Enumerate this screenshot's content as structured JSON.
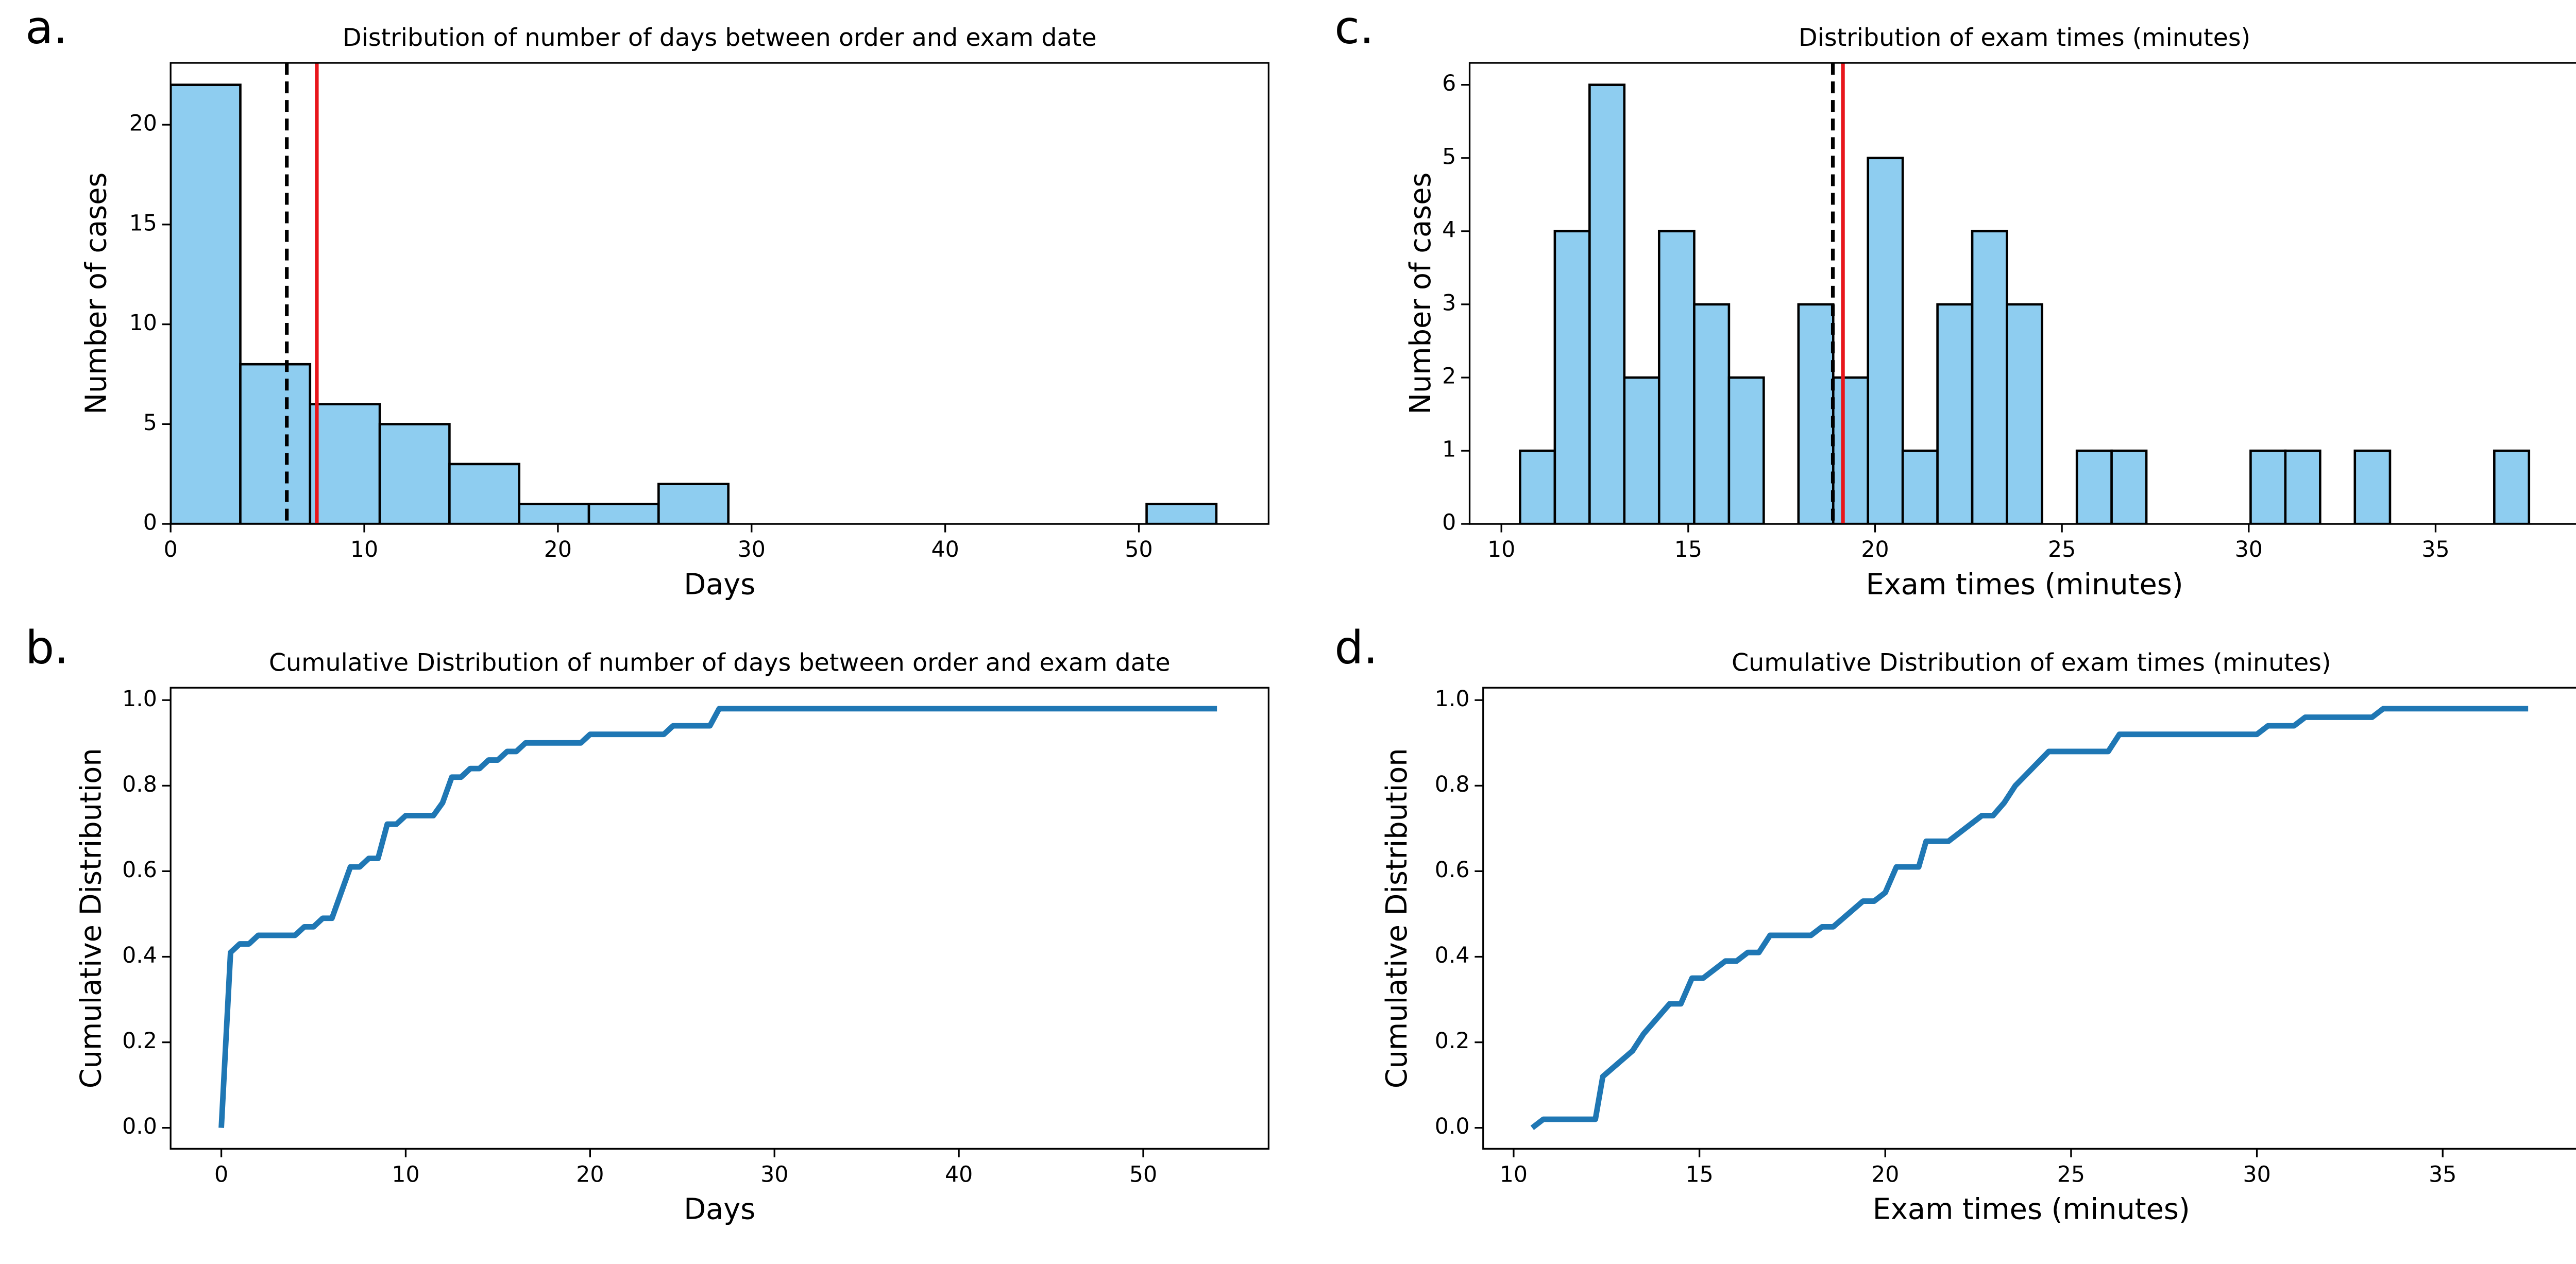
{
  "chart_data": [
    {
      "type": "histogram",
      "panel_label": "a.",
      "title": "Distribution of number of days between order and exam date",
      "x_label": "Days",
      "y_label": "Number of cases",
      "color": "#8ecdf0",
      "edge_color": "#000000",
      "bins": [
        0,
        3.6,
        7.2,
        10.8,
        14.4,
        18,
        21.6,
        25.2,
        28.8,
        32.4,
        36,
        39.6,
        43.2,
        46.8,
        50.4,
        54
      ],
      "values": [
        22,
        8,
        6,
        5,
        3,
        1,
        1,
        2,
        0,
        0,
        0,
        0,
        0,
        0,
        1
      ],
      "reference_lines": [
        {
          "x": 6,
          "color": "#000000",
          "style": "dashed"
        },
        {
          "x": 7.55,
          "color": "#e8161b",
          "style": "solid"
        }
      ],
      "xlim": [
        0,
        56.7
      ],
      "xticks": [
        0,
        10,
        20,
        30,
        40,
        50
      ],
      "ylim": [
        0,
        23.1
      ],
      "yticks": [
        0,
        5,
        10,
        15,
        20
      ]
    },
    {
      "type": "line",
      "panel_label": "b.",
      "title": "Cumulative Distribution of number of days between order and exam date",
      "x_label": "Days",
      "y_label": "Cumulative Distribution",
      "color": "#1f77b4",
      "x": [
        0,
        0.5,
        1,
        1.5,
        2,
        4,
        4.5,
        5,
        5.5,
        6,
        7,
        7.5,
        8,
        8.5,
        9,
        9.5,
        10,
        11.5,
        12,
        12.5,
        13,
        13.5,
        14,
        14.5,
        15,
        15.5,
        16,
        16.5,
        19.5,
        20,
        24,
        24.5,
        26.5,
        27,
        54
      ],
      "values": [
        0,
        0.41,
        0.43,
        0.43,
        0.45,
        0.45,
        0.47,
        0.47,
        0.49,
        0.49,
        0.61,
        0.61,
        0.63,
        0.63,
        0.71,
        0.71,
        0.73,
        0.73,
        0.76,
        0.82,
        0.82,
        0.84,
        0.84,
        0.86,
        0.86,
        0.88,
        0.88,
        0.9,
        0.9,
        0.92,
        0.92,
        0.94,
        0.94,
        0.98,
        0.98
      ],
      "xlim": [
        -2.75,
        56.8
      ],
      "xticks": [
        0,
        10,
        20,
        30,
        40,
        50
      ],
      "ylim": [
        -0.049,
        1.029
      ],
      "yticks": [
        {
          "value": 0,
          "label": "0.0"
        },
        0.2,
        0.4,
        0.6,
        0.8,
        {
          "value": 1,
          "label": "1.0"
        }
      ]
    },
    {
      "type": "histogram",
      "panel_label": "c.",
      "title": "Distribution of exam times (minutes)",
      "x_label": "Exam times (minutes)",
      "y_label": "Number of cases",
      "color": "#8ecdf0",
      "edge_color": "#000000",
      "bins": [
        10.5,
        11.43,
        12.36,
        13.29,
        14.22,
        15.16,
        16.09,
        17.02,
        17.95,
        18.88,
        19.81,
        20.74,
        21.67,
        22.6,
        23.53,
        24.47,
        25.4,
        26.33,
        27.26,
        28.19,
        29.12,
        30.05,
        30.98,
        31.91,
        32.84,
        33.78,
        34.71,
        35.64,
        36.57,
        37.5
      ],
      "values": [
        1,
        4,
        6,
        2,
        4,
        3,
        2,
        0,
        3,
        2,
        5,
        1,
        3,
        4,
        3,
        0,
        1,
        1,
        0,
        0,
        0,
        1,
        1,
        0,
        1,
        0,
        0,
        0,
        1
      ],
      "reference_lines": [
        {
          "x": 18.87,
          "color": "#000000",
          "style": "dashed"
        },
        {
          "x": 19.14,
          "color": "#e8161b",
          "style": "solid"
        }
      ],
      "xlim": [
        9.15,
        38.85
      ],
      "xticks": [
        10,
        15,
        20,
        25,
        30,
        35
      ],
      "ylim": [
        0,
        6.3
      ],
      "yticks": [
        0,
        1,
        2,
        3,
        4,
        5,
        6
      ]
    },
    {
      "type": "line",
      "panel_label": "d.",
      "title": "Cumulative Distribution of exam times (minutes)",
      "x_label": "Exam times (minutes)",
      "y_label": "Cumulative Distribution",
      "color": "#1f77b4",
      "x": [
        10.5,
        10.8,
        12.2,
        12.4,
        13.2,
        13.5,
        14.2,
        14.5,
        14.8,
        15.1,
        15.7,
        16,
        16.3,
        16.6,
        16.9,
        18,
        18.3,
        18.6,
        19.4,
        19.7,
        20,
        20.3,
        20.9,
        21.1,
        21.7,
        22.6,
        22.9,
        23.2,
        23.5,
        24.4,
        26,
        26.3,
        30,
        30.3,
        31,
        31.3,
        33.1,
        33.4,
        37.3
      ],
      "values": [
        0,
        0.02,
        0.02,
        0.12,
        0.18,
        0.22,
        0.29,
        0.29,
        0.35,
        0.35,
        0.39,
        0.39,
        0.41,
        0.41,
        0.45,
        0.45,
        0.47,
        0.47,
        0.53,
        0.53,
        0.55,
        0.61,
        0.61,
        0.67,
        0.67,
        0.73,
        0.73,
        0.76,
        0.8,
        0.88,
        0.88,
        0.92,
        0.92,
        0.94,
        0.94,
        0.96,
        0.96,
        0.98,
        0.98
      ],
      "xlim": [
        9.18,
        38.68
      ],
      "xticks": [
        10,
        15,
        20,
        25,
        30,
        35
      ],
      "ylim": [
        -0.049,
        1.029
      ],
      "yticks": [
        {
          "value": 0,
          "label": "0.0"
        },
        0.2,
        0.4,
        0.6,
        0.8,
        {
          "value": 1,
          "label": "1.0"
        }
      ]
    }
  ]
}
